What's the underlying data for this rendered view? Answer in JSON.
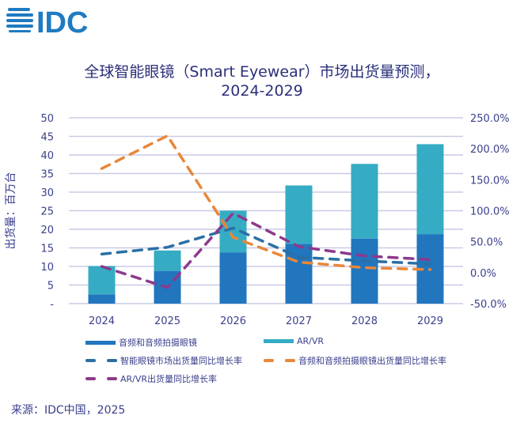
{
  "logo_text": "IDC",
  "title_line1": "全球智能眼镜（Smart Eyewear）市场出货量预测，",
  "title_line2": "2024-2029",
  "source": "来源：IDC中国，2025",
  "chart_data": {
    "type": "bar",
    "stacked": true,
    "categories": [
      "2024",
      "2025",
      "2026",
      "2027",
      "2028",
      "2029"
    ],
    "ylabel": "出货量：百万台",
    "ylim": [
      0,
      50
    ],
    "yticks": [
      "-",
      "5",
      "10",
      "15",
      "20",
      "25",
      "30",
      "35",
      "40",
      "45",
      "50"
    ],
    "y2lim": [
      -50,
      250
    ],
    "y2ticks": [
      "-50.0%",
      "0.0%",
      "50.0%",
      "100.0%",
      "150.0%",
      "200.0%",
      "250.0%"
    ],
    "grid": true,
    "legend_position": "bottom",
    "series": [
      {
        "name": "音频和音频拍摄眼镜",
        "type": "bar",
        "axis": "left",
        "color": "#2176be",
        "values": [
          2.5,
          8.8,
          13.8,
          16.1,
          17.5,
          18.7
        ]
      },
      {
        "name": "AR/VR",
        "type": "bar",
        "axis": "left",
        "color": "#35acc4",
        "values": [
          7.6,
          5.5,
          11.2,
          15.7,
          20.1,
          24.2
        ]
      },
      {
        "name": "智能眼镜市场出货量同比增长率",
        "type": "line",
        "dashed": true,
        "axis": "right",
        "unit": "%",
        "color": "#2a6fa3",
        "values": [
          30,
          41,
          72,
          25,
          19,
          14
        ]
      },
      {
        "name": "音频和音频拍摄眼镜出货量同比增长率",
        "type": "line",
        "dashed": true,
        "axis": "right",
        "unit": "%",
        "color": "#e8873a",
        "values": [
          168,
          221,
          57,
          17,
          8,
          5
        ]
      },
      {
        "name": "AR/VR出货量同比增长率",
        "type": "line",
        "dashed": true,
        "axis": "right",
        "unit": "%",
        "color": "#8c3a8c",
        "values": [
          10,
          -24,
          96,
          42,
          27,
          21
        ]
      }
    ]
  }
}
